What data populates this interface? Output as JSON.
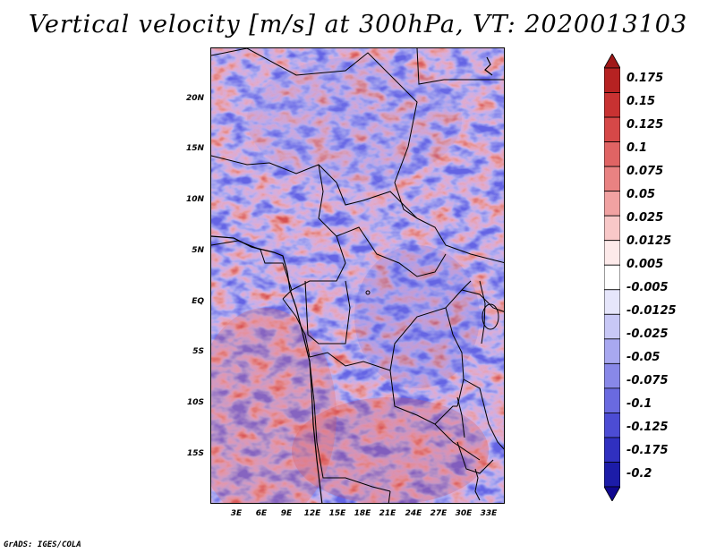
{
  "title": "Vertical velocity [m/s] at 300hPa, VT: 2020013103",
  "credit": "GrADS: IGES/COLA",
  "map": {
    "lat_labels": [
      "20N",
      "15N",
      "10N",
      "5N",
      "EQ",
      "5S",
      "10S",
      "15S"
    ],
    "lon_labels": [
      "3E",
      "6E",
      "9E",
      "12E",
      "15E",
      "18E",
      "21E",
      "24E",
      "27E",
      "30E",
      "33E"
    ]
  },
  "colorbar": {
    "labels": [
      "0.175",
      "0.15",
      "0.125",
      "0.1",
      "0.075",
      "0.05",
      "0.025",
      "0.0125",
      "0.005",
      "-0.005",
      "-0.0125",
      "-0.025",
      "-0.05",
      "-0.075",
      "-0.1",
      "-0.125",
      "-0.175",
      "-0.2"
    ],
    "colors": [
      "#a01818",
      "#b62222",
      "#c83232",
      "#d64848",
      "#e06464",
      "#e98282",
      "#f1a2a2",
      "#f8c8c8",
      "#fdeaea",
      "#ffffff",
      "#e6e6fb",
      "#c8c8f6",
      "#a8a8f0",
      "#8888e8",
      "#6a6ae0",
      "#4c4cd4",
      "#3030c0",
      "#1c1ca8",
      "#100890"
    ]
  }
}
